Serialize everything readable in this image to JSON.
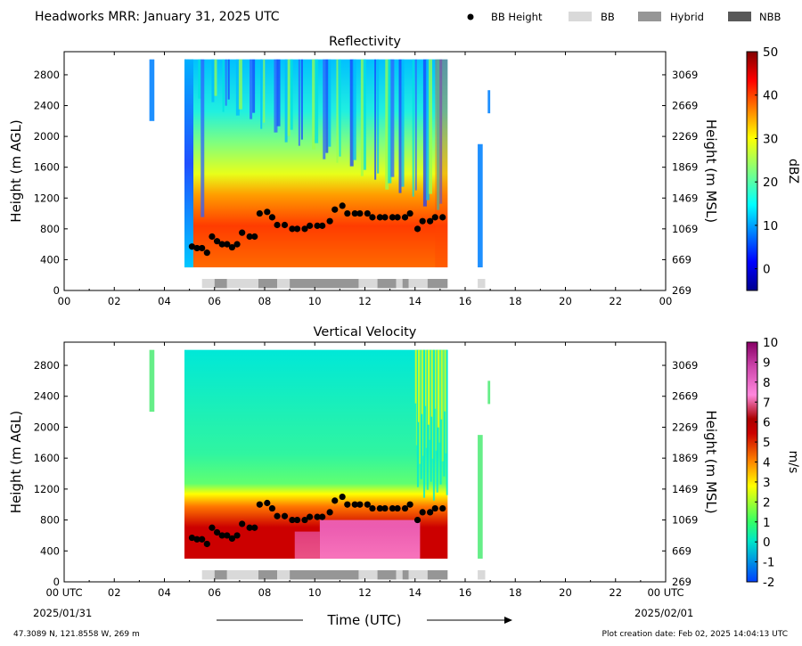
{
  "header": {
    "title": "Headworks MRR:  January 31, 2025 UTC",
    "legend": [
      {
        "label": "BB Height",
        "marker": "dot",
        "color": "#000000"
      },
      {
        "label": "BB",
        "marker": "box",
        "color": "#d9d9d9"
      },
      {
        "label": "Hybrid",
        "marker": "box",
        "color": "#969696"
      },
      {
        "label": "NBB",
        "marker": "box",
        "color": "#595959"
      }
    ]
  },
  "footer": {
    "location": "47.3089 N, 121.8558 W, 269 m",
    "creation": "Plot creation date: Feb 02, 2025 14:04:13 UTC",
    "xlabel": "Time (UTC)",
    "start_date": "2025/01/31",
    "end_date": "2025/02/01"
  },
  "chart_data": [
    {
      "type": "heatmap",
      "title": "Reflectivity",
      "xlabel": "Time (UTC)",
      "ylabel": "Height (m AGL)",
      "ylabel_right": "Height (m MSL)",
      "xlim": [
        0,
        24
      ],
      "ylim": [
        0,
        3100
      ],
      "x_ticks": [
        "00",
        "02",
        "04",
        "06",
        "08",
        "10",
        "12",
        "14",
        "16",
        "18",
        "20",
        "22",
        "00"
      ],
      "y_ticks": [
        0,
        400,
        800,
        1200,
        1600,
        2000,
        2400,
        2800
      ],
      "y_ticks_right": [
        269,
        669,
        1069,
        1469,
        1869,
        2269,
        2669,
        3069
      ],
      "colorbar": {
        "label": "dBZ",
        "range": [
          -5,
          50
        ],
        "ticks": [
          0,
          10,
          20,
          30,
          40,
          50
        ],
        "colormap": "jet"
      },
      "data_extent": {
        "x": [
          4.8,
          15.3
        ],
        "y": [
          300,
          3000
        ]
      },
      "echo_segments": [
        [
          3.4,
          3.6,
          2200,
          3000
        ],
        [
          16.9,
          17.0,
          2300,
          2600
        ],
        [
          16.5,
          16.7,
          300,
          1900
        ]
      ]
    },
    {
      "type": "heatmap",
      "title": "Vertical Velocity",
      "xlabel": "Time (UTC)",
      "ylabel": "Height (m AGL)",
      "ylabel_right": "Height (m MSL)",
      "xlim": [
        0,
        24
      ],
      "ylim": [
        0,
        3100
      ],
      "x_ticks": [
        "00 UTC",
        "02",
        "04",
        "06",
        "08",
        "10",
        "12",
        "14",
        "16",
        "18",
        "20",
        "22",
        "00 UTC"
      ],
      "y_ticks": [
        0,
        400,
        800,
        1200,
        1600,
        2000,
        2400,
        2800
      ],
      "y_ticks_right": [
        269,
        669,
        1069,
        1469,
        1869,
        2269,
        2669,
        3069
      ],
      "colorbar": {
        "label": "m/s",
        "range": [
          -2,
          10
        ],
        "ticks": [
          -2,
          -1,
          0,
          1,
          2,
          3,
          4,
          5,
          6,
          7,
          8,
          9,
          10
        ],
        "colormap": "velocity"
      },
      "data_extent": {
        "x": [
          4.8,
          15.3
        ],
        "y": [
          300,
          3000
        ]
      },
      "echo_segments": [
        [
          3.4,
          3.6,
          2200,
          3000
        ],
        [
          16.9,
          17.0,
          2300,
          2600
        ],
        [
          16.5,
          16.7,
          300,
          1900
        ]
      ]
    }
  ],
  "bb_height": {
    "x": [
      5.1,
      5.3,
      5.5,
      5.7,
      5.9,
      6.1,
      6.3,
      6.5,
      6.7,
      6.9,
      7.1,
      7.4,
      7.6,
      7.8,
      8.1,
      8.3,
      8.5,
      8.8,
      9.1,
      9.3,
      9.6,
      9.8,
      10.1,
      10.3,
      10.6,
      10.8,
      11.1,
      11.3,
      11.6,
      11.8,
      12.1,
      12.3,
      12.6,
      12.8,
      13.1,
      13.3,
      13.6,
      13.8,
      14.1,
      14.3,
      14.6,
      14.8,
      15.1
    ],
    "y": [
      570,
      550,
      550,
      490,
      700,
      640,
      600,
      600,
      560,
      600,
      750,
      700,
      700,
      1000,
      1020,
      950,
      850,
      850,
      800,
      800,
      800,
      840,
      840,
      840,
      900,
      1050,
      1100,
      1000,
      1000,
      1000,
      1000,
      950,
      950,
      950,
      950,
      950,
      950,
      1000,
      800,
      900,
      900,
      950,
      950
    ]
  },
  "bb_type_bar": [
    {
      "type": "BB",
      "start": 5.5,
      "end": 6.0
    },
    {
      "type": "Hybrid",
      "start": 6.0,
      "end": 6.5
    },
    {
      "type": "BB",
      "start": 6.5,
      "end": 7.75
    },
    {
      "type": "Hybrid",
      "start": 7.75,
      "end": 8.5
    },
    {
      "type": "BB",
      "start": 8.5,
      "end": 9.0
    },
    {
      "type": "Hybrid",
      "start": 9.0,
      "end": 11.75
    },
    {
      "type": "BB",
      "start": 11.75,
      "end": 12.5
    },
    {
      "type": "Hybrid",
      "start": 12.5,
      "end": 13.25
    },
    {
      "type": "BB",
      "start": 13.25,
      "end": 13.5
    },
    {
      "type": "Hybrid",
      "start": 13.5,
      "end": 13.75
    },
    {
      "type": "BB",
      "start": 13.75,
      "end": 14.5
    },
    {
      "type": "Hybrid",
      "start": 14.5,
      "end": 15.3
    },
    {
      "type": "BB",
      "start": 16.5,
      "end": 16.8
    }
  ]
}
